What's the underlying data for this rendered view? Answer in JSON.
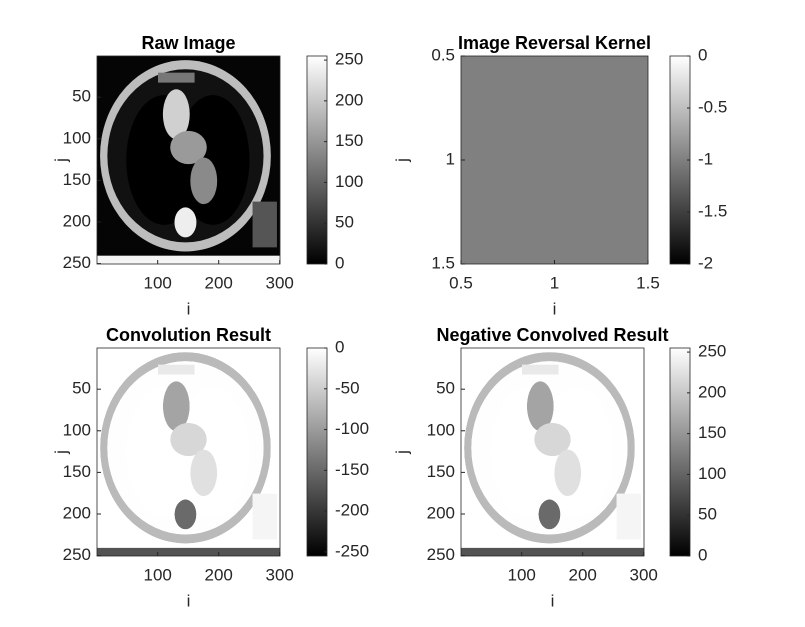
{
  "chart_data": [
    {
      "type": "image",
      "title": "Raw Image",
      "xlabel": "i",
      "ylabel": "j",
      "xlim": [
        0.5,
        300.5
      ],
      "ylim": [
        0.5,
        250.5
      ],
      "xticks": [
        100,
        200,
        300
      ],
      "yticks": [
        50,
        100,
        150,
        200,
        250
      ],
      "colorbar": {
        "clim": [
          0,
          255
        ],
        "ticks": [
          0,
          50,
          100,
          150,
          200,
          250
        ]
      }
    },
    {
      "type": "heatmap",
      "title": "Image Reversal Kernel",
      "xlabel": "i",
      "ylabel": "j",
      "values": [
        [
          -1
        ]
      ],
      "xlim": [
        0.5,
        1.5
      ],
      "ylim": [
        0.5,
        1.5
      ],
      "xticks": [
        0.5,
        1,
        1.5
      ],
      "yticks": [
        0.5,
        1,
        1.5
      ],
      "colorbar": {
        "clim": [
          -2,
          0
        ],
        "ticks": [
          -2,
          -1.5,
          -1,
          -0.5,
          0
        ]
      }
    },
    {
      "type": "image",
      "inverted": true,
      "title": "Convolution Result",
      "xlabel": "i",
      "ylabel": "j",
      "xlim": [
        0.5,
        300.5
      ],
      "ylim": [
        0.5,
        250.5
      ],
      "xticks": [
        100,
        200,
        300
      ],
      "yticks": [
        50,
        100,
        150,
        200,
        250
      ],
      "colorbar": {
        "clim": [
          -255,
          0
        ],
        "ticks": [
          -250,
          -200,
          -150,
          -100,
          -50,
          0
        ]
      }
    },
    {
      "type": "image",
      "inverted": true,
      "title": "Negative Convolved Result",
      "xlabel": "i",
      "ylabel": "j",
      "xlim": [
        0.5,
        300.5
      ],
      "ylim": [
        0.5,
        250.5
      ],
      "xticks": [
        100,
        200,
        300
      ],
      "yticks": [
        50,
        100,
        150,
        200,
        250
      ],
      "colorbar": {
        "clim": [
          0,
          255
        ],
        "ticks": [
          0,
          50,
          100,
          150,
          200,
          250
        ]
      }
    }
  ]
}
